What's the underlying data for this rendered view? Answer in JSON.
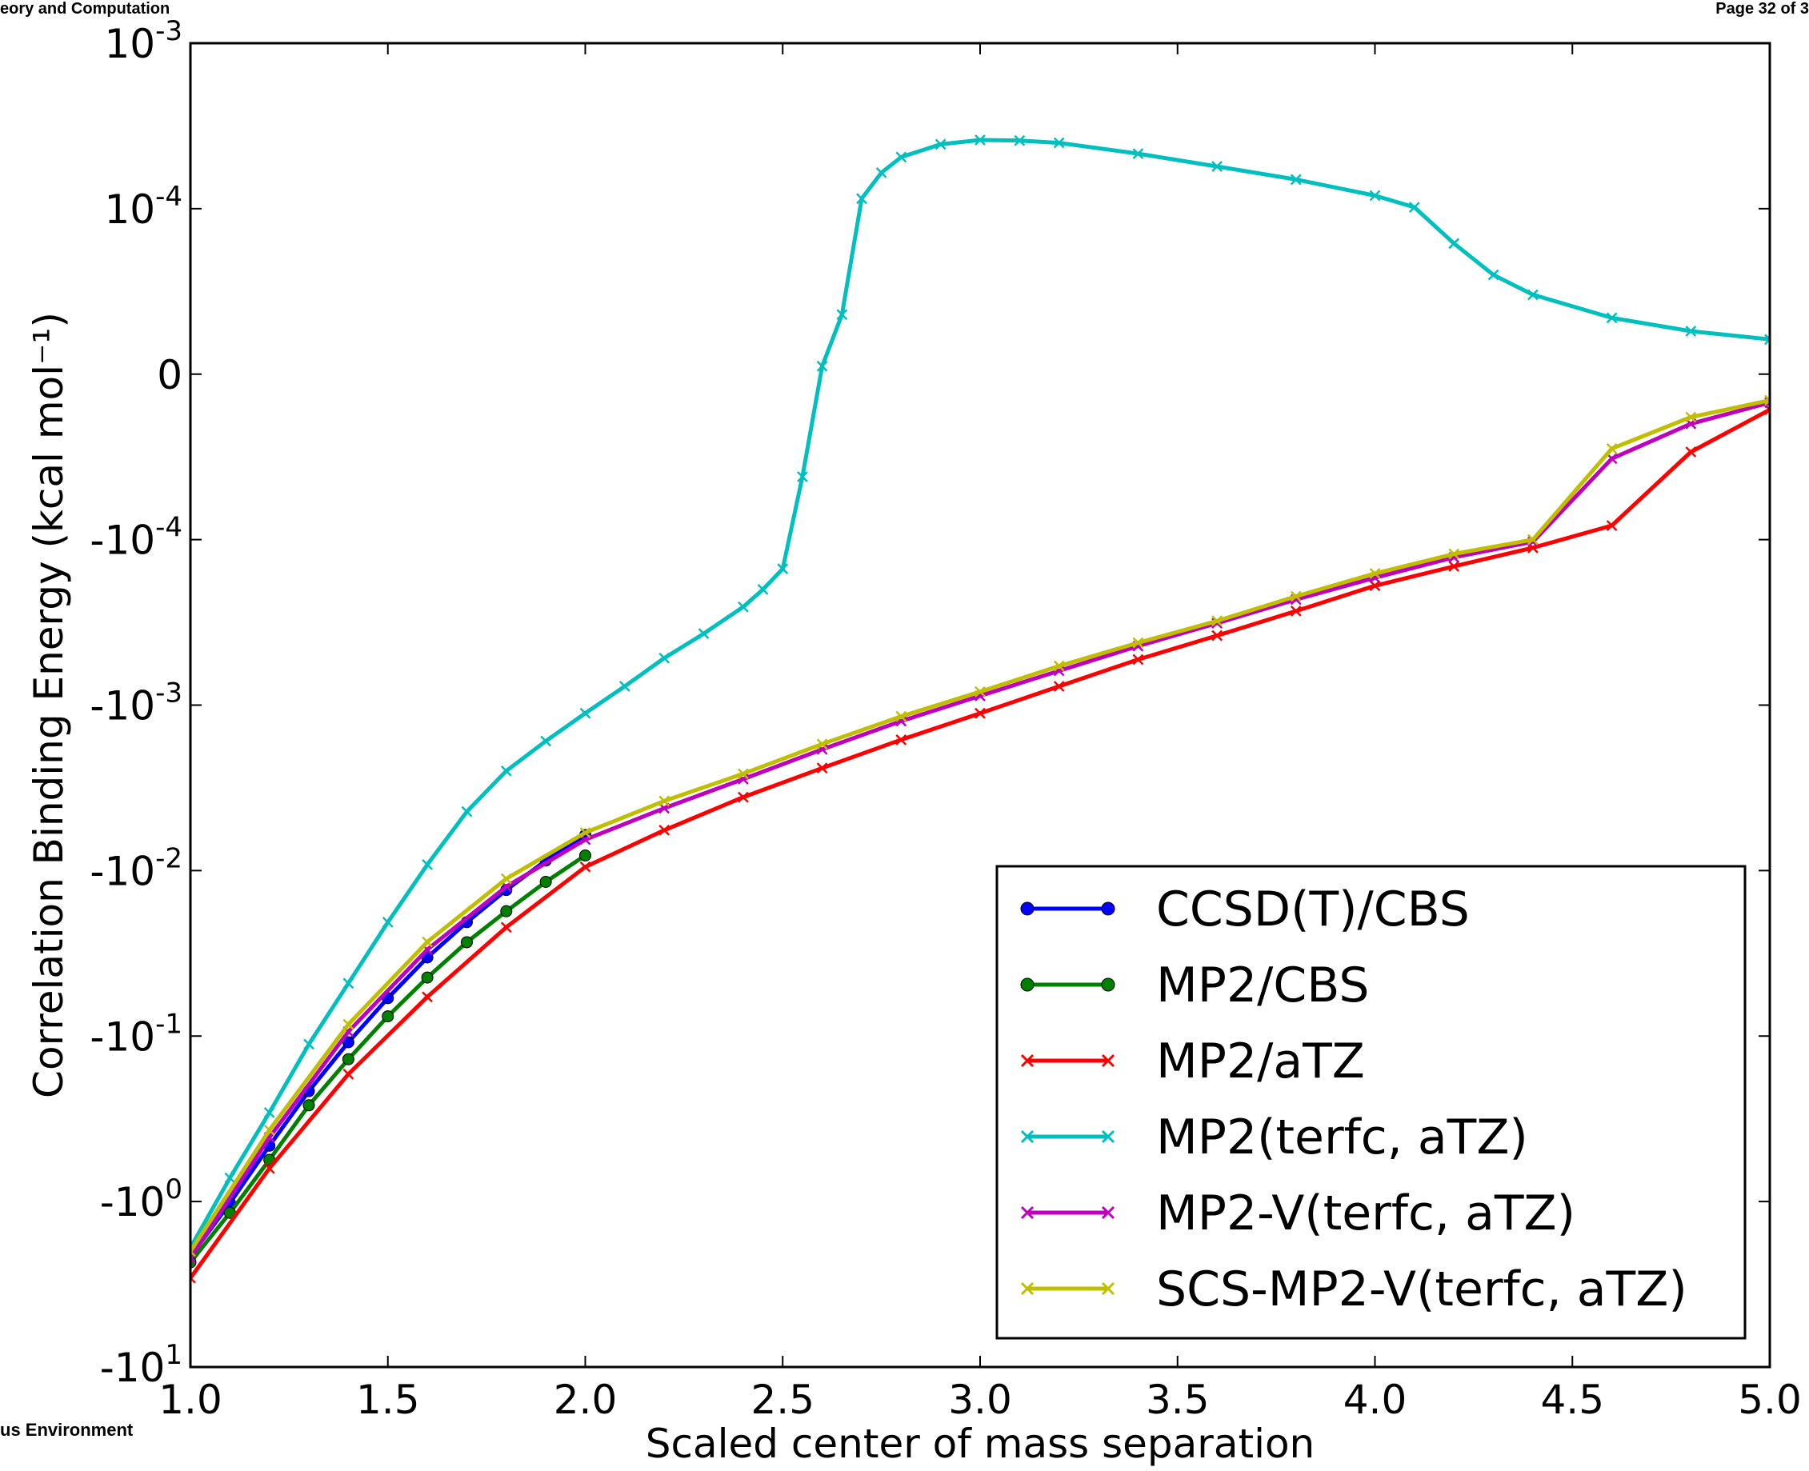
{
  "page": {
    "header_left": "eory and Computation",
    "header_right": "Page 32 of 3",
    "footer_left": "us Environment"
  },
  "chart_data": {
    "type": "line",
    "xlabel": "Scaled center of mass separation",
    "ylabel": "Correlation Binding Energy (kcal mol⁻¹)",
    "xlim": [
      1.0,
      5.0
    ],
    "x_ticks": [
      "1.0",
      "1.5",
      "2.0",
      "2.5",
      "3.0",
      "3.5",
      "4.0",
      "4.5",
      "5.0"
    ],
    "y_scale": "symlog",
    "y_ticks": [
      {
        "value": 0.001,
        "base": "10",
        "exp": "-3"
      },
      {
        "value": 0.0001,
        "base": "10",
        "exp": "-4"
      },
      {
        "value": 0,
        "base": "0",
        "exp": ""
      },
      {
        "value": -0.0001,
        "base": "-10",
        "exp": "-4"
      },
      {
        "value": -0.001,
        "base": "-10",
        "exp": "-3"
      },
      {
        "value": -0.01,
        "base": "-10",
        "exp": "-2"
      },
      {
        "value": -0.1,
        "base": "-10",
        "exp": "-1"
      },
      {
        "value": -1,
        "base": "-10",
        "exp": "0"
      },
      {
        "value": -10,
        "base": "-10",
        "exp": "1"
      }
    ],
    "grid": false,
    "legend_position": "bottom-right",
    "series": [
      {
        "name": "CCSD(T)/CBS",
        "color": "#0000ff",
        "marker": "dot",
        "x": [
          1.0,
          1.1,
          1.2,
          1.3,
          1.4,
          1.5,
          1.6,
          1.7,
          1.8,
          1.9,
          2.0
        ],
        "y": [
          -2.15,
          -1.02,
          -0.46,
          -0.215,
          -0.109,
          -0.059,
          -0.0335,
          -0.0205,
          -0.0131,
          -0.0087,
          -0.0061
        ]
      },
      {
        "name": "MP2/CBS",
        "color": "#008000",
        "marker": "dot",
        "x": [
          1.0,
          1.1,
          1.2,
          1.3,
          1.4,
          1.5,
          1.6,
          1.7,
          1.8,
          1.9,
          2.0
        ],
        "y": [
          -2.33,
          -1.17,
          -0.56,
          -0.262,
          -0.138,
          -0.076,
          -0.0443,
          -0.0271,
          -0.0176,
          -0.0117,
          -0.0081
        ]
      },
      {
        "name": "MP2/aTZ",
        "color": "#ff0000",
        "marker": "x",
        "x": [
          1.0,
          1.2,
          1.4,
          1.6,
          1.8,
          2.0,
          2.2,
          2.4,
          2.6,
          2.8,
          3.0,
          3.2,
          3.4,
          3.6,
          3.8,
          4.0,
          4.2,
          4.4,
          4.6,
          4.8,
          5.0
        ],
        "y": [
          -2.9,
          -0.63,
          -0.17,
          -0.058,
          -0.022,
          -0.0095,
          -0.0057,
          -0.0036,
          -0.0024,
          -0.00162,
          -0.00112,
          -0.00077,
          -0.00053,
          -0.00038,
          -0.00027,
          -0.00019,
          -0.000145,
          -0.000112,
          -9.15e-05,
          -4.7e-05,
          -2.15e-05
        ]
      },
      {
        "name": "MP2(terfc, aTZ)",
        "color": "#00bfbf",
        "marker": "x",
        "x": [
          1.0,
          1.1,
          1.2,
          1.3,
          1.4,
          1.5,
          1.6,
          1.7,
          1.8,
          1.9,
          2.0,
          2.1,
          2.2,
          2.3,
          2.4,
          2.45,
          2.5,
          2.55,
          2.6,
          2.65,
          2.7,
          2.75,
          2.8,
          2.9,
          3.0,
          3.1,
          3.2,
          3.4,
          3.6,
          3.8,
          4.0,
          4.1,
          4.2,
          4.3,
          4.4,
          4.6,
          4.8,
          5.0
        ],
        "y": [
          -1.9,
          -0.72,
          -0.29,
          -0.112,
          -0.048,
          -0.0205,
          -0.0092,
          -0.0044,
          -0.0025,
          -0.00165,
          -0.00112,
          -0.00077,
          -0.00052,
          -0.00037,
          -0.000255,
          -0.0002,
          -0.00015,
          -6.2e-05,
          4.8e-06,
          3.6e-05,
          0.000115,
          0.000165,
          0.000205,
          0.000245,
          0.00026,
          0.000258,
          0.00025,
          0.000215,
          0.00018,
          0.00015,
          0.00012,
          0.000102,
          7.9e-05,
          6e-05,
          4.8e-05,
          3.4e-05,
          2.6e-05,
          2.1e-05
        ]
      },
      {
        "name": "MP2-V(terfc, aTZ)",
        "color": "#bf00bf",
        "marker": "x",
        "x": [
          1.0,
          1.2,
          1.4,
          1.6,
          1.8,
          2.0,
          2.2,
          2.4,
          2.6,
          2.8,
          3.0,
          3.2,
          3.4,
          3.6,
          3.8,
          4.0,
          4.2,
          4.4,
          4.6,
          4.8,
          5.0
        ],
        "y": [
          -2.2,
          -0.41,
          -0.094,
          -0.03,
          -0.0125,
          -0.0065,
          -0.0042,
          -0.0028,
          -0.00185,
          -0.00125,
          -0.00088,
          -0.00062,
          -0.00044,
          -0.00032,
          -0.00023,
          -0.00017,
          -0.000128,
          -0.000103,
          -5.1e-05,
          -3e-05,
          -1.72e-05
        ]
      },
      {
        "name": "SCS-MP2-V(terfc, aTZ)",
        "color": "#bfbf00",
        "marker": "x",
        "x": [
          1.0,
          1.2,
          1.4,
          1.6,
          1.8,
          2.0,
          2.2,
          2.4,
          2.6,
          2.8,
          3.0,
          3.2,
          3.4,
          3.6,
          3.8,
          4.0,
          4.2,
          4.4,
          4.6,
          4.8,
          5.0
        ],
        "y": [
          -2.0,
          -0.37,
          -0.085,
          -0.027,
          -0.0112,
          -0.0059,
          -0.0038,
          -0.0026,
          -0.00172,
          -0.00117,
          -0.00083,
          -0.00058,
          -0.00042,
          -0.00031,
          -0.00022,
          -0.00016,
          -0.000122,
          -0.0001,
          -4.5e-05,
          -2.6e-05,
          -1.58e-05
        ]
      }
    ]
  }
}
